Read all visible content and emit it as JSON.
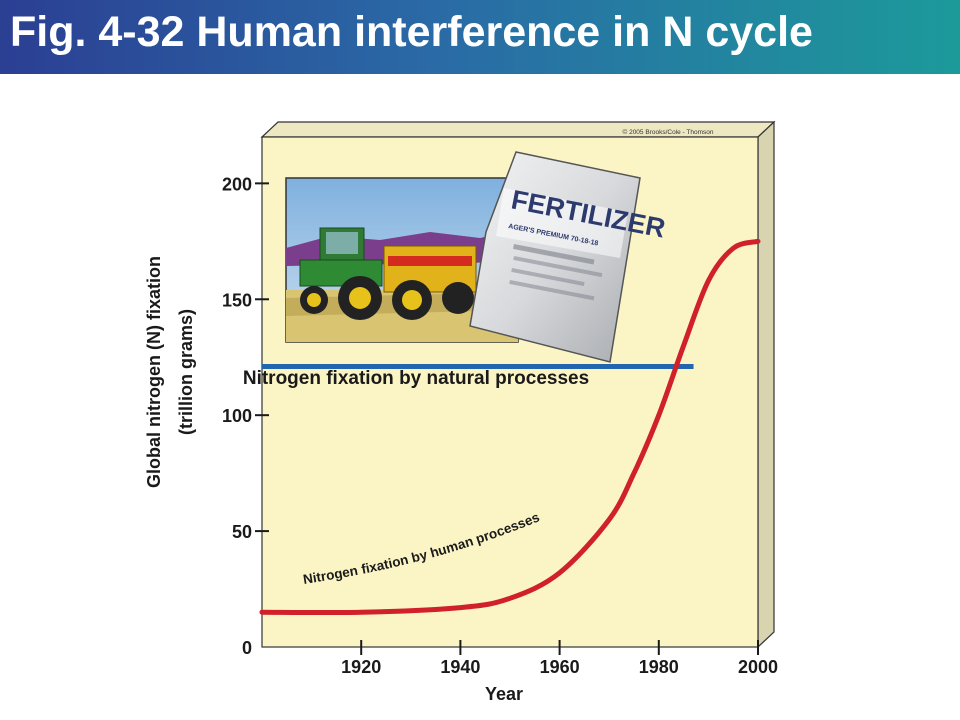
{
  "slide": {
    "title": "Fig. 4-32 Human interference in N cycle"
  },
  "colors": {
    "panel": "#fbf5c6",
    "panel_side": "#d9d4b0",
    "natural_line": "#2266b0",
    "human_curve": "#d0202a",
    "title_gradient": [
      "#2b3f93",
      "#1c9a9a"
    ]
  },
  "copyright": "© 2005 Brooks/Cole - Thomson",
  "illustrations": {
    "fertilizer_bag_text": "FERTILIZER",
    "fertilizer_bag_brand": "AGER'S PREMIUM 70-18-18",
    "tractor_photo": "tractor-with-fertilizer-spreader"
  },
  "chart_data": {
    "type": "line",
    "xlabel": "Year",
    "ylabel": [
      "Global nitrogen (N) fixation",
      "(trillion grams)"
    ],
    "xlim": [
      1900,
      2000
    ],
    "ylim": [
      0,
      220
    ],
    "x_ticks": [
      1920,
      1940,
      1960,
      1980,
      2000
    ],
    "y_ticks": [
      0,
      50,
      100,
      150,
      200
    ],
    "grid": false,
    "series": [
      {
        "name": "Nitrogen fixation by natural processes",
        "style": "horizontal",
        "x": [
          1900,
          1987
        ],
        "y": [
          121,
          121
        ]
      },
      {
        "name": "Nitrogen fixation by human processes",
        "style": "curve",
        "x": [
          1900,
          1920,
          1940,
          1950,
          1960,
          1970,
          1975,
          1980,
          1985,
          1990,
          1995,
          2000
        ],
        "y": [
          15,
          15,
          17,
          21,
          32,
          55,
          75,
          100,
          130,
          158,
          172,
          175
        ]
      }
    ]
  }
}
